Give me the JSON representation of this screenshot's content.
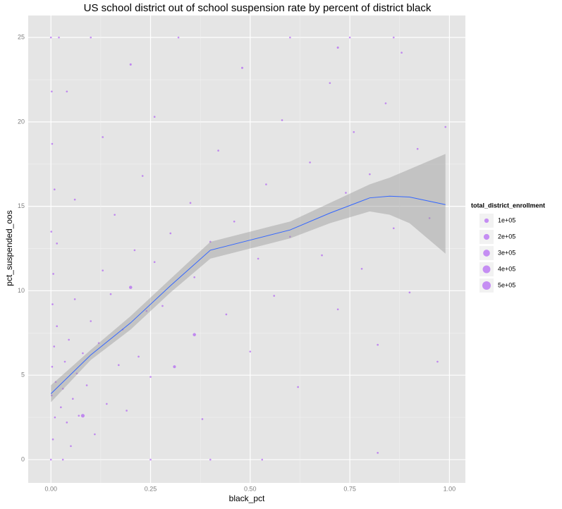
{
  "chart_data": {
    "type": "scatter",
    "title": "US school district out of school suspension rate by percent of district black",
    "x_label": "black_pct",
    "y_label": "pct_suspended_oos",
    "xlim": [
      -0.057,
      1.04
    ],
    "ylim": [
      -1.38,
      26.3
    ],
    "xticks": [
      {
        "value": 0,
        "label": "0.00"
      },
      {
        "value": 0.25,
        "label": "0.25"
      },
      {
        "value": 0.5,
        "label": "0.50"
      },
      {
        "value": 0.75,
        "label": "0.75"
      },
      {
        "value": 1,
        "label": "1.00"
      }
    ],
    "yticks": [
      0,
      5,
      10,
      15,
      20,
      25
    ],
    "grid": true,
    "point_color": "#a64bf4",
    "points": [
      {
        "x": 0,
        "y": 0,
        "size": 5000
      },
      {
        "x": 0.005,
        "y": 1.2,
        "size": 5000
      },
      {
        "x": 0.01,
        "y": 2.5,
        "size": 5000
      },
      {
        "x": 0.002,
        "y": 3.8,
        "size": 5000
      },
      {
        "x": 0.012,
        "y": 4.6,
        "size": 5000
      },
      {
        "x": 0.003,
        "y": 5.5,
        "size": 5000
      },
      {
        "x": 0.008,
        "y": 6.7,
        "size": 5000
      },
      {
        "x": 0.015,
        "y": 7.9,
        "size": 5000
      },
      {
        "x": 0.004,
        "y": 9.2,
        "size": 5000
      },
      {
        "x": 0.006,
        "y": 11,
        "size": 5000
      },
      {
        "x": 0.001,
        "y": 13.5,
        "size": 5000
      },
      {
        "x": 0.009,
        "y": 16,
        "size": 5000
      },
      {
        "x": 0.003,
        "y": 18.7,
        "size": 5000
      },
      {
        "x": 0.002,
        "y": 21.8,
        "size": 5000
      },
      {
        "x": 0,
        "y": 25,
        "size": 5000
      },
      {
        "x": 0.02,
        "y": 25,
        "size": 5000
      },
      {
        "x": 0.03,
        "y": 0,
        "size": 5000
      },
      {
        "x": 0.025,
        "y": 3.1,
        "size": 5000
      },
      {
        "x": 0.03,
        "y": 4.2,
        "size": 5000
      },
      {
        "x": 0.035,
        "y": 5.8,
        "size": 5000
      },
      {
        "x": 0.04,
        "y": 2.2,
        "size": 5000
      },
      {
        "x": 0.045,
        "y": 7.1,
        "size": 5000
      },
      {
        "x": 0.05,
        "y": 0.8,
        "size": 5000
      },
      {
        "x": 0.055,
        "y": 3.6,
        "size": 5000
      },
      {
        "x": 0.06,
        "y": 9.5,
        "size": 5000
      },
      {
        "x": 0.065,
        "y": 5.1,
        "size": 5000
      },
      {
        "x": 0.07,
        "y": 2.6,
        "size": 5000
      },
      {
        "x": 0.08,
        "y": 6.3,
        "size": 5000
      },
      {
        "x": 0.09,
        "y": 4.4,
        "size": 5000
      },
      {
        "x": 0.1,
        "y": 8.2,
        "size": 5000
      },
      {
        "x": 0.11,
        "y": 1.5,
        "size": 5000
      },
      {
        "x": 0.12,
        "y": 6.9,
        "size": 5000
      },
      {
        "x": 0.13,
        "y": 11.2,
        "size": 5000
      },
      {
        "x": 0.14,
        "y": 3.3,
        "size": 5000
      },
      {
        "x": 0.15,
        "y": 9.8,
        "size": 5000
      },
      {
        "x": 0.16,
        "y": 14.5,
        "size": 5000
      },
      {
        "x": 0.17,
        "y": 5.6,
        "size": 5000
      },
      {
        "x": 0.18,
        "y": 7.7,
        "size": 5000
      },
      {
        "x": 0.19,
        "y": 2.9,
        "size": 5000
      },
      {
        "x": 0.2,
        "y": 10.2,
        "size": 40000
      },
      {
        "x": 0.21,
        "y": 12.4,
        "size": 5000
      },
      {
        "x": 0.22,
        "y": 6.1,
        "size": 5000
      },
      {
        "x": 0.23,
        "y": 16.8,
        "size": 5000
      },
      {
        "x": 0.24,
        "y": 8.8,
        "size": 5000
      },
      {
        "x": 0.25,
        "y": 4.9,
        "size": 5000
      },
      {
        "x": 0.26,
        "y": 11.7,
        "size": 5000
      },
      {
        "x": 0.28,
        "y": 9.1,
        "size": 5000
      },
      {
        "x": 0.3,
        "y": 13.4,
        "size": 5000
      },
      {
        "x": 0.31,
        "y": 5.5,
        "size": 30000
      },
      {
        "x": 0.36,
        "y": 7.4,
        "size": 40000
      },
      {
        "x": 0.35,
        "y": 15.2,
        "size": 5000
      },
      {
        "x": 0.36,
        "y": 10.8,
        "size": 5000
      },
      {
        "x": 0.38,
        "y": 2.4,
        "size": 5000
      },
      {
        "x": 0.4,
        "y": 12.9,
        "size": 5000
      },
      {
        "x": 0.42,
        "y": 18.3,
        "size": 5000
      },
      {
        "x": 0.44,
        "y": 8.6,
        "size": 5000
      },
      {
        "x": 0.46,
        "y": 14.1,
        "size": 5000
      },
      {
        "x": 0.48,
        "y": 23.2,
        "size": 10000
      },
      {
        "x": 0.5,
        "y": 6.4,
        "size": 5000
      },
      {
        "x": 0.52,
        "y": 11.9,
        "size": 5000
      },
      {
        "x": 0.54,
        "y": 16.3,
        "size": 5000
      },
      {
        "x": 0.56,
        "y": 9.7,
        "size": 5000
      },
      {
        "x": 0.58,
        "y": 20.1,
        "size": 5000
      },
      {
        "x": 0.6,
        "y": 13.2,
        "size": 5000
      },
      {
        "x": 0.62,
        "y": 4.3,
        "size": 5000
      },
      {
        "x": 0.65,
        "y": 17.6,
        "size": 5000
      },
      {
        "x": 0.68,
        "y": 12.1,
        "size": 5000
      },
      {
        "x": 0.7,
        "y": 22.3,
        "size": 5000
      },
      {
        "x": 0.72,
        "y": 8.9,
        "size": 5000
      },
      {
        "x": 0.74,
        "y": 15.8,
        "size": 5000
      },
      {
        "x": 0.76,
        "y": 19.4,
        "size": 5000
      },
      {
        "x": 0.78,
        "y": 11.3,
        "size": 5000
      },
      {
        "x": 0.8,
        "y": 16.9,
        "size": 5000
      },
      {
        "x": 0.82,
        "y": 6.8,
        "size": 5000
      },
      {
        "x": 0.84,
        "y": 21.1,
        "size": 5000
      },
      {
        "x": 0.86,
        "y": 13.7,
        "size": 5000
      },
      {
        "x": 0.88,
        "y": 24.1,
        "size": 5000
      },
      {
        "x": 0.9,
        "y": 9.9,
        "size": 5000
      },
      {
        "x": 0.92,
        "y": 18.4,
        "size": 5000
      },
      {
        "x": 0.95,
        "y": 14.3,
        "size": 5000
      },
      {
        "x": 0.97,
        "y": 5.8,
        "size": 5000
      },
      {
        "x": 0.99,
        "y": 19.7,
        "size": 5000
      },
      {
        "x": 0.32,
        "y": 25,
        "size": 5000
      },
      {
        "x": 0.6,
        "y": 25,
        "size": 5000
      },
      {
        "x": 0.75,
        "y": 25,
        "size": 5000
      },
      {
        "x": 0.86,
        "y": 25,
        "size": 5000
      },
      {
        "x": 0.1,
        "y": 25,
        "size": 5000
      },
      {
        "x": 0.25,
        "y": 0,
        "size": 5000
      },
      {
        "x": 0.4,
        "y": 0,
        "size": 5000
      },
      {
        "x": 0.53,
        "y": 0,
        "size": 5000
      },
      {
        "x": 0.82,
        "y": 0.4,
        "size": 5000
      },
      {
        "x": 0.08,
        "y": 2.6,
        "size": 60000
      },
      {
        "x": 0.26,
        "y": 20.3,
        "size": 5000
      },
      {
        "x": 0.13,
        "y": 19.1,
        "size": 5000
      },
      {
        "x": 0.06,
        "y": 15.4,
        "size": 5000
      },
      {
        "x": 0.04,
        "y": 21.8,
        "size": 5000
      },
      {
        "x": 0.015,
        "y": 12.8,
        "size": 5000
      },
      {
        "x": 0.2,
        "y": 23.4,
        "size": 10000
      },
      {
        "x": 0.72,
        "y": 24.4,
        "size": 10000
      }
    ],
    "smooth": {
      "color": "#3366ff",
      "band_color": "#999999",
      "x": [
        0,
        0.1,
        0.2,
        0.3,
        0.4,
        0.5,
        0.6,
        0.7,
        0.8,
        0.85,
        0.9,
        0.99
      ],
      "y": [
        3.9,
        6.2,
        8.1,
        10.3,
        12.4,
        13,
        13.6,
        14.6,
        15.5,
        15.6,
        15.55,
        15.1
      ],
      "lower": [
        3.4,
        5.9,
        7.7,
        9.9,
        11.9,
        12.5,
        13.1,
        14,
        14.7,
        14.5,
        14,
        12.2
      ],
      "upper": [
        4.4,
        6.5,
        8.5,
        10.7,
        12.9,
        13.5,
        14.1,
        15.2,
        16.3,
        16.7,
        17.2,
        18.1
      ]
    },
    "size_legend": {
      "title": "total_district_enrollment",
      "keys": [
        {
          "value": 100000,
          "label": "1e+05"
        },
        {
          "value": 200000,
          "label": "2e+05"
        },
        {
          "value": 300000,
          "label": "3e+05"
        },
        {
          "value": 400000,
          "label": "4e+05"
        },
        {
          "value": 500000,
          "label": "5e+05"
        }
      ]
    }
  }
}
